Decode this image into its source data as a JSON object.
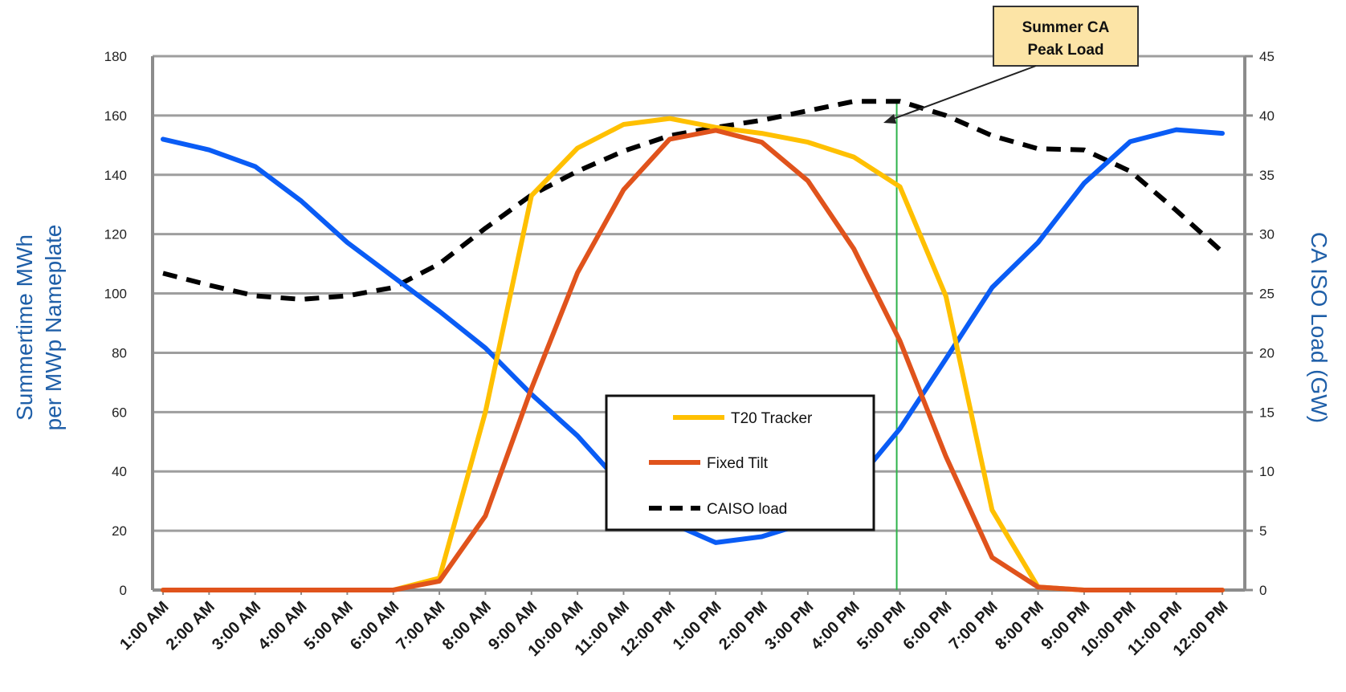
{
  "chart_data": {
    "type": "line",
    "categories": [
      "1:00 AM",
      "2:00 AM",
      "3:00 AM",
      "4:00 AM",
      "5:00 AM",
      "6:00 AM",
      "7:00 AM",
      "8:00 AM",
      "9:00 AM",
      "10:00 AM",
      "11:00 AM",
      "12:00 PM",
      "1:00 PM",
      "2:00 PM",
      "3:00 PM",
      "4:00 PM",
      "5:00 PM",
      "6:00 PM",
      "7:00 PM",
      "8:00 PM",
      "9:00 PM",
      "10:00 PM",
      "11:00 PM",
      "12:00 PM"
    ],
    "ylabel_left": [
      "Summertime MWh",
      "per MWp Nameplate"
    ],
    "ylabel_right": "CA ISO Load (GW)",
    "ylim_left": [
      0,
      180
    ],
    "yticks_left": [
      0,
      20,
      40,
      60,
      80,
      100,
      120,
      140,
      160,
      180
    ],
    "ylim_right": [
      0,
      45
    ],
    "yticks_right": [
      0,
      5,
      10,
      15,
      20,
      25,
      30,
      35,
      40,
      45
    ],
    "grid": true,
    "legend_position": "bottom-center",
    "series": [
      {
        "name": "T20 Tracker",
        "axis": "left",
        "color": "#ffc000",
        "style": "solid",
        "values": [
          0,
          0,
          0,
          0,
          0,
          0,
          4,
          60,
          133,
          149,
          157,
          159,
          156,
          154,
          151,
          146,
          136,
          99,
          27,
          1,
          0,
          0,
          0,
          0
        ]
      },
      {
        "name": "Fixed Tilt",
        "axis": "left",
        "color": "#e0531c",
        "style": "solid",
        "values": [
          0,
          0,
          0,
          0,
          0,
          0,
          3,
          25,
          68,
          107,
          135,
          152,
          155,
          151,
          138,
          115,
          84,
          45,
          11,
          1,
          0,
          0,
          0,
          0
        ]
      },
      {
        "name": "CAISO load",
        "axis": "right",
        "color": "#000000",
        "style": "dashed",
        "values": [
          26.7,
          25.7,
          24.8,
          24.5,
          24.8,
          25.5,
          27.5,
          30.5,
          33.3,
          35.3,
          37,
          38.3,
          39,
          39.6,
          40.4,
          41.2,
          41.2,
          40,
          38.3,
          37.2,
          37.1,
          35.3,
          32,
          28.5
        ]
      },
      {
        "axis": "right",
        "color": "#0a5cf5",
        "style": "solid",
        "values": [
          38,
          37.1,
          35.7,
          32.8,
          29.3,
          26.4,
          23.5,
          20.4,
          16.5,
          13,
          8.7,
          5.7,
          4,
          4.5,
          5.7,
          8.9,
          13.6,
          19.5,
          25.5,
          29.3,
          34.3,
          37.8,
          38.8,
          38.5
        ]
      }
    ],
    "annotations": [
      {
        "text": [
          "Summer CA",
          "Peak Load"
        ],
        "target_category": "5:00 PM"
      }
    ]
  },
  "colors": {
    "axis_title": "#1f5fa8",
    "grid": "#9e9e9e",
    "callout_fill": "#fce4a6",
    "marker_line": "#2db34a"
  }
}
